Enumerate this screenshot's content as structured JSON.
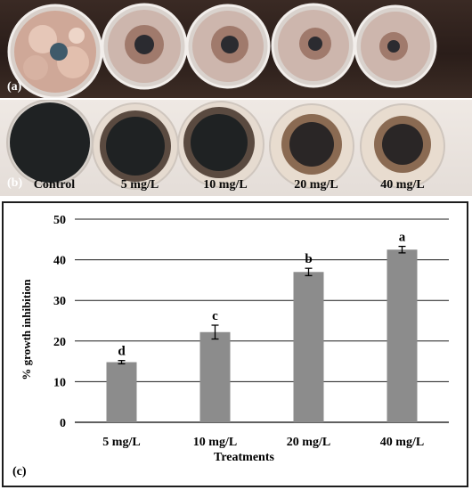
{
  "panels": {
    "a_label": "(a)",
    "b_label": "(b)",
    "c_label": "(c)",
    "doses": [
      "Control",
      "5 mg/L",
      "10 mg/L",
      "20 mg/L",
      "40 mg/L"
    ]
  },
  "colors": {
    "bar": "#8c8c8c",
    "colony_dark": "#1f2223",
    "colony_ring_a": "#a07a6c",
    "medium_a": "#cdb6ad",
    "medium_b": "#e8dccf"
  },
  "chart_data": {
    "type": "bar",
    "categories": [
      "5 mg/L",
      "10 mg/L",
      "20 mg/L",
      "40 mg/L"
    ],
    "values": [
      14.8,
      22.2,
      37.0,
      42.5
    ],
    "errors": [
      0.4,
      1.7,
      0.9,
      0.8
    ],
    "significance_letters": [
      "d",
      "c",
      "b",
      "a"
    ],
    "xlabel": "Treatments",
    "ylabel": "% growth inhibition",
    "ylim": [
      0,
      50
    ],
    "yticks": [
      0,
      10,
      20,
      30,
      40,
      50
    ],
    "grid": true,
    "legend": "none"
  }
}
